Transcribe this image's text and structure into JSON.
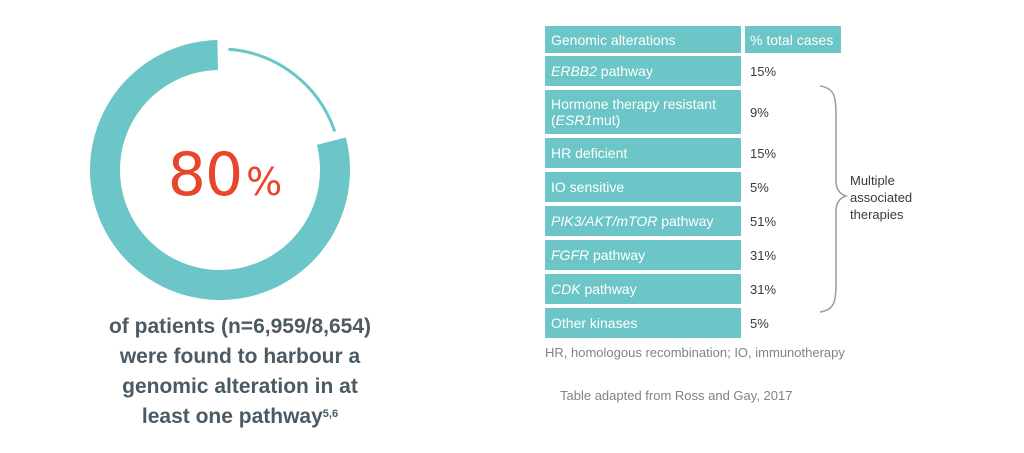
{
  "donut": {
    "value_fraction": 0.8,
    "percent_number": "80",
    "percent_symbol": "%",
    "color_fill": "#6cc5c6",
    "color_text": "#e9452b"
  },
  "caption": {
    "line1": "of patients (n=6,959/8,654)",
    "line2": "were found to harbour a",
    "line3": "genomic alteration in at",
    "line4": "least one pathway",
    "superscript": "5,6"
  },
  "table": {
    "header_col1": "Genomic alterations",
    "header_col2": "% total cases",
    "rows": [
      {
        "pre": "",
        "italic": "ERBB2",
        "post": " pathway",
        "value": "15%"
      },
      {
        "pre": "Hormone therapy resistant (",
        "italic": "ESR1",
        "post": "mut)",
        "value": "9%"
      },
      {
        "pre": "HR deficient",
        "italic": "",
        "post": "",
        "value": "15%"
      },
      {
        "pre": "IO sensitive",
        "italic": "",
        "post": "",
        "value": "5%"
      },
      {
        "pre": "",
        "italic": "PIK3/AKT/mTOR",
        "post": " pathway",
        "value": "51%"
      },
      {
        "pre": "",
        "italic": "FGFR",
        "post": " pathway",
        "value": "31%"
      },
      {
        "pre": "",
        "italic": "CDK",
        "post": " pathway",
        "value": "31%"
      },
      {
        "pre": "Other kinases",
        "italic": "",
        "post": "",
        "value": "5%"
      }
    ],
    "accent_color": "#6cc5c6"
  },
  "bracket_label": {
    "line1": "Multiple",
    "line2": "associated",
    "line3": "therapies"
  },
  "footnote": "HR, homologous recombination; IO, immunotherapy",
  "source": "Table adapted from Ross and Gay, 2017"
}
